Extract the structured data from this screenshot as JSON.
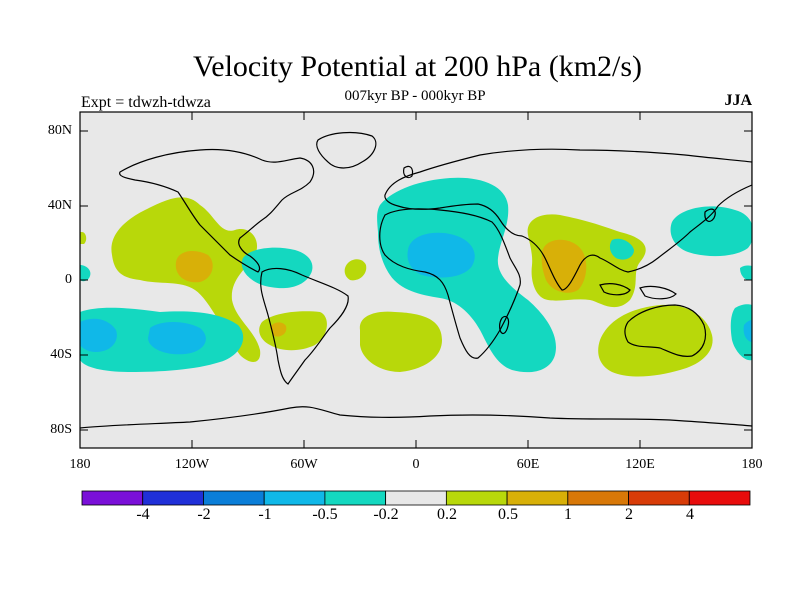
{
  "title": "Velocity Potential at 200 hPa (km2/s)",
  "subtitle": "007kyr BP - 000kyr BP",
  "expt_label": "Expt = tdwzh-tdwza",
  "season": "JJA",
  "y_axis": {
    "ticks": [
      "80N",
      "40N",
      "0",
      "40S",
      "80S"
    ]
  },
  "x_axis": {
    "ticks": [
      "180",
      "120W",
      "60W",
      "0",
      "60E",
      "120E",
      "180"
    ]
  },
  "colorbar": {
    "colors": [
      "#7a10d8",
      "#2030d8",
      "#0a7ed8",
      "#10b8e8",
      "#14d8c0",
      "#e8e8e8",
      "#b8d80a",
      "#d8b008",
      "#d87808",
      "#d83c08",
      "#e80c0c"
    ],
    "labels": [
      "-4",
      "-2",
      "-1",
      "-0.5",
      "-0.2",
      "0.2",
      "0.5",
      "1",
      "2",
      "4"
    ]
  },
  "colors": {
    "background": "#e8e8e8",
    "neg_small": "#14d8c0",
    "neg_mid": "#10b8e8",
    "pos_small": "#b8d80a",
    "pos_mid": "#d8b008"
  }
}
